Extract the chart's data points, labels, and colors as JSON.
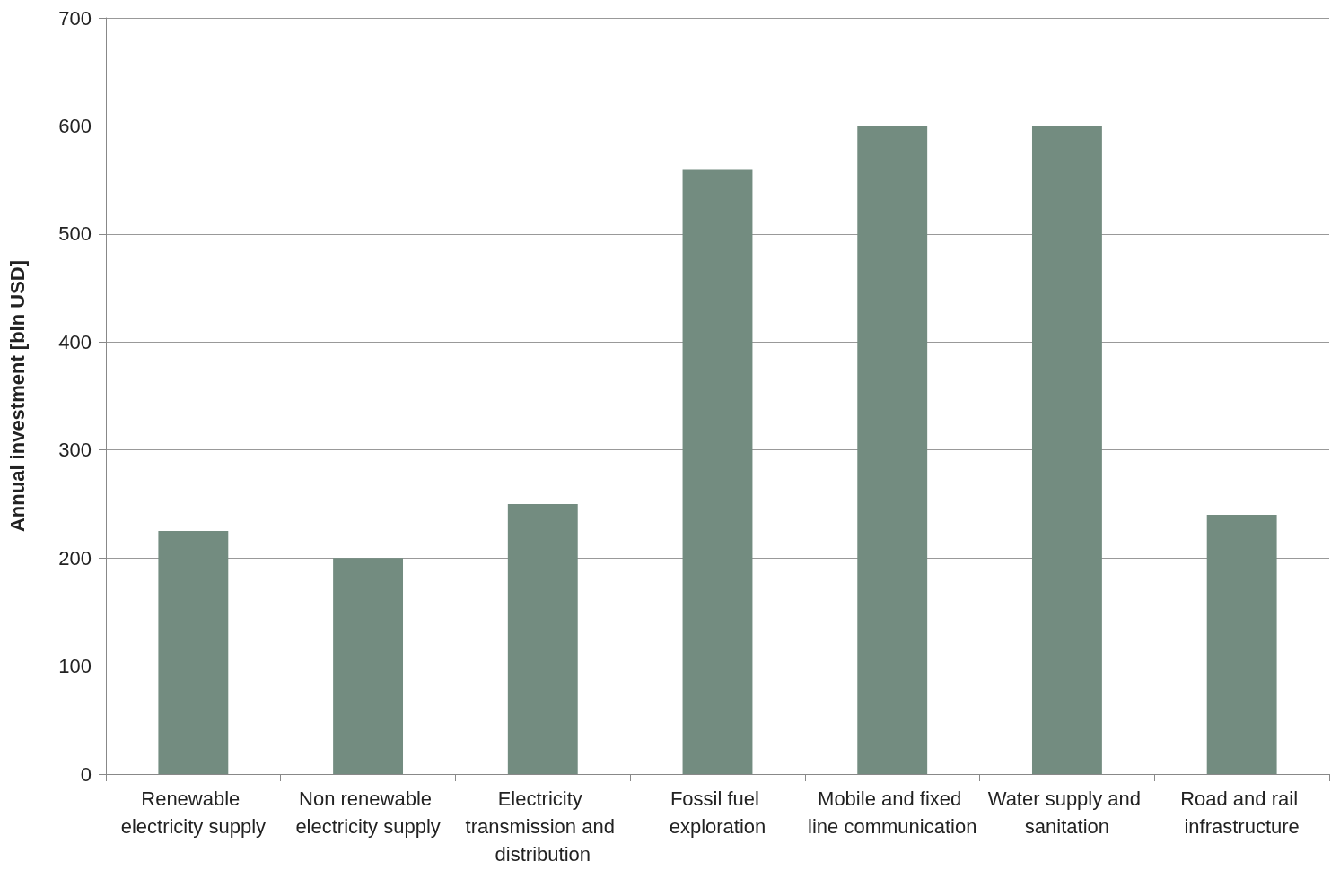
{
  "chart_data": {
    "type": "bar",
    "ylabel": "Annual investment [bln USD]",
    "categories": [
      "Renewable electricity supply",
      "Non renewable electricity supply",
      "Electricity transmission and distribution",
      "Fossil fuel exploration",
      "Mobile and fixed line communication",
      "Water supply and sanitation",
      "Road and rail infrastructure"
    ],
    "values": [
      225,
      200,
      250,
      560,
      600,
      600,
      240
    ],
    "color": "#738c80",
    "ylim": [
      0,
      700
    ],
    "yticks": [
      0,
      100,
      200,
      300,
      400,
      500,
      600,
      700
    ],
    "grid": "y"
  }
}
